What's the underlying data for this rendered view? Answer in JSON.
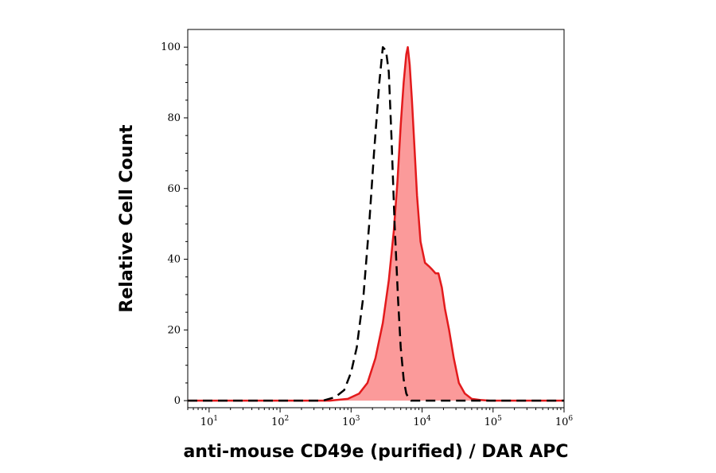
{
  "chart_data": {
    "type": "area",
    "xlabel": "anti-mouse CD49e (purified) / DAR APC",
    "ylabel": "Relative Cell Count",
    "x_scale": "log",
    "xlim": [
      5,
      1000000
    ],
    "ylim": [
      -2,
      105
    ],
    "y_ticks": [
      0,
      20,
      40,
      60,
      80,
      100
    ],
    "x_ticks": [
      {
        "value": 10,
        "base": "10",
        "exp": "1"
      },
      {
        "value": 100,
        "base": "10",
        "exp": "2"
      },
      {
        "value": 1000,
        "base": "10",
        "exp": "3"
      },
      {
        "value": 10000,
        "base": "10",
        "exp": "4"
      },
      {
        "value": 100000,
        "base": "10",
        "exp": "5"
      },
      {
        "value": 1000000,
        "base": "10",
        "exp": "6"
      }
    ],
    "grid": false,
    "legend": "none",
    "series": [
      {
        "style": "filled",
        "color": "#e31a1c",
        "fill": "#fb9a9a",
        "x": [
          5,
          100,
          500,
          900,
          1300,
          1700,
          2200,
          2800,
          3400,
          4000,
          4500,
          5000,
          5500,
          6000,
          6300,
          6700,
          7200,
          7800,
          8500,
          9500,
          11000,
          12500,
          14000,
          15500,
          17000,
          19000,
          21000,
          24000,
          28000,
          33000,
          40000,
          50000,
          65000,
          90000,
          200000,
          1000000
        ],
        "y": [
          0,
          0,
          0,
          0.5,
          2,
          5,
          12,
          22,
          34,
          48,
          62,
          78,
          90,
          98,
          100,
          95,
          85,
          72,
          58,
          45,
          39,
          38,
          37,
          36,
          36,
          32,
          26,
          20,
          12,
          5,
          2,
          0.5,
          0.2,
          0,
          0,
          0
        ]
      },
      {
        "style": "dashed",
        "color": "#000000",
        "x": [
          5,
          100,
          400,
          600,
          800,
          1000,
          1200,
          1500,
          1800,
          2100,
          2500,
          2800,
          3100,
          3400,
          3700,
          4100,
          4600,
          5000,
          5500,
          6000,
          6500,
          7000,
          10000,
          1000000
        ],
        "y": [
          0,
          0,
          0,
          1,
          3,
          8,
          15,
          30,
          50,
          70,
          90,
          100,
          99,
          93,
          75,
          50,
          28,
          15,
          6,
          2,
          0.5,
          0,
          0,
          0
        ]
      }
    ]
  }
}
